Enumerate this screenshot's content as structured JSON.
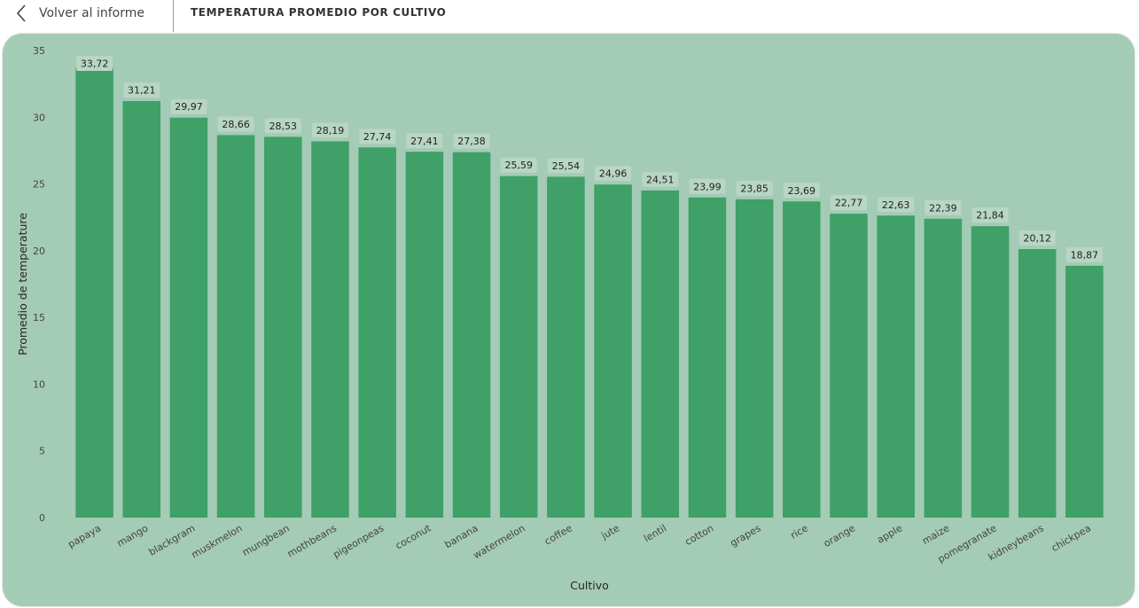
{
  "header": {
    "back_label": "Volver al informe",
    "title": "TEMPERATURA PROMEDIO POR CULTIVO"
  },
  "colors": {
    "card_background": "#a4cbb5",
    "bar": "#3fa068",
    "data_label_background": "#b8d6c4"
  },
  "icons": {
    "back": "chevron-left-icon"
  },
  "chart_data": {
    "type": "bar",
    "title": "",
    "xlabel": "Cultivo",
    "ylabel": "Promedio de temperature",
    "ylim": [
      0,
      35
    ],
    "yticks": [
      0,
      5,
      10,
      15,
      20,
      25,
      30,
      35
    ],
    "grid": false,
    "legend": "none",
    "categories": [
      "papaya",
      "mango",
      "blackgram",
      "muskmelon",
      "mungbean",
      "mothbeans",
      "pigeonpeas",
      "coconut",
      "banana",
      "watermelon",
      "coffee",
      "jute",
      "lentil",
      "cotton",
      "grapes",
      "rice",
      "orange",
      "apple",
      "maize",
      "pomegranate",
      "kidneybeans",
      "chickpea"
    ],
    "values": [
      33.72,
      31.21,
      29.97,
      28.66,
      28.53,
      28.19,
      27.74,
      27.41,
      27.38,
      25.59,
      25.54,
      24.96,
      24.51,
      23.99,
      23.85,
      23.69,
      22.77,
      22.63,
      22.39,
      21.84,
      20.12,
      18.87
    ],
    "data_labels": [
      "33,72",
      "31,21",
      "29,97",
      "28,66",
      "28,53",
      "28,19",
      "27,74",
      "27,41",
      "27,38",
      "25,59",
      "25,54",
      "24,96",
      "24,51",
      "23,99",
      "23,85",
      "23,69",
      "22,77",
      "22,63",
      "22,39",
      "21,84",
      "20,12",
      "18,87"
    ]
  }
}
